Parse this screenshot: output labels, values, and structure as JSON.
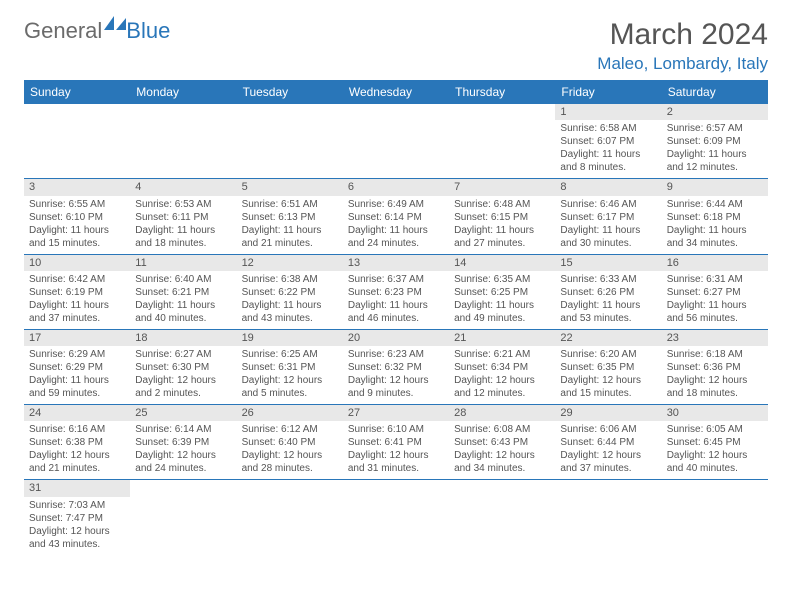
{
  "logo": {
    "part1": "General",
    "part2": "Blue"
  },
  "title": "March 2024",
  "subtitle": "Maleo, Lombardy, Italy",
  "colors": {
    "header_bg": "#2976b9",
    "header_text": "#ffffff",
    "daynum_bg": "#e8e8e8",
    "text": "#555555",
    "row_divider": "#2976b9",
    "page_bg": "#ffffff"
  },
  "typography": {
    "title_fontsize": 30,
    "subtitle_fontsize": 17,
    "dayhead_fontsize": 12,
    "cell_fontsize": 10
  },
  "day_headers": [
    "Sunday",
    "Monday",
    "Tuesday",
    "Wednesday",
    "Thursday",
    "Friday",
    "Saturday"
  ],
  "weeks": [
    [
      null,
      null,
      null,
      null,
      null,
      {
        "n": "1",
        "sr": "Sunrise: 6:58 AM",
        "ss": "Sunset: 6:07 PM",
        "d1": "Daylight: 11 hours",
        "d2": "and 8 minutes."
      },
      {
        "n": "2",
        "sr": "Sunrise: 6:57 AM",
        "ss": "Sunset: 6:09 PM",
        "d1": "Daylight: 11 hours",
        "d2": "and 12 minutes."
      }
    ],
    [
      {
        "n": "3",
        "sr": "Sunrise: 6:55 AM",
        "ss": "Sunset: 6:10 PM",
        "d1": "Daylight: 11 hours",
        "d2": "and 15 minutes."
      },
      {
        "n": "4",
        "sr": "Sunrise: 6:53 AM",
        "ss": "Sunset: 6:11 PM",
        "d1": "Daylight: 11 hours",
        "d2": "and 18 minutes."
      },
      {
        "n": "5",
        "sr": "Sunrise: 6:51 AM",
        "ss": "Sunset: 6:13 PM",
        "d1": "Daylight: 11 hours",
        "d2": "and 21 minutes."
      },
      {
        "n": "6",
        "sr": "Sunrise: 6:49 AM",
        "ss": "Sunset: 6:14 PM",
        "d1": "Daylight: 11 hours",
        "d2": "and 24 minutes."
      },
      {
        "n": "7",
        "sr": "Sunrise: 6:48 AM",
        "ss": "Sunset: 6:15 PM",
        "d1": "Daylight: 11 hours",
        "d2": "and 27 minutes."
      },
      {
        "n": "8",
        "sr": "Sunrise: 6:46 AM",
        "ss": "Sunset: 6:17 PM",
        "d1": "Daylight: 11 hours",
        "d2": "and 30 minutes."
      },
      {
        "n": "9",
        "sr": "Sunrise: 6:44 AM",
        "ss": "Sunset: 6:18 PM",
        "d1": "Daylight: 11 hours",
        "d2": "and 34 minutes."
      }
    ],
    [
      {
        "n": "10",
        "sr": "Sunrise: 6:42 AM",
        "ss": "Sunset: 6:19 PM",
        "d1": "Daylight: 11 hours",
        "d2": "and 37 minutes."
      },
      {
        "n": "11",
        "sr": "Sunrise: 6:40 AM",
        "ss": "Sunset: 6:21 PM",
        "d1": "Daylight: 11 hours",
        "d2": "and 40 minutes."
      },
      {
        "n": "12",
        "sr": "Sunrise: 6:38 AM",
        "ss": "Sunset: 6:22 PM",
        "d1": "Daylight: 11 hours",
        "d2": "and 43 minutes."
      },
      {
        "n": "13",
        "sr": "Sunrise: 6:37 AM",
        "ss": "Sunset: 6:23 PM",
        "d1": "Daylight: 11 hours",
        "d2": "and 46 minutes."
      },
      {
        "n": "14",
        "sr": "Sunrise: 6:35 AM",
        "ss": "Sunset: 6:25 PM",
        "d1": "Daylight: 11 hours",
        "d2": "and 49 minutes."
      },
      {
        "n": "15",
        "sr": "Sunrise: 6:33 AM",
        "ss": "Sunset: 6:26 PM",
        "d1": "Daylight: 11 hours",
        "d2": "and 53 minutes."
      },
      {
        "n": "16",
        "sr": "Sunrise: 6:31 AM",
        "ss": "Sunset: 6:27 PM",
        "d1": "Daylight: 11 hours",
        "d2": "and 56 minutes."
      }
    ],
    [
      {
        "n": "17",
        "sr": "Sunrise: 6:29 AM",
        "ss": "Sunset: 6:29 PM",
        "d1": "Daylight: 11 hours",
        "d2": "and 59 minutes."
      },
      {
        "n": "18",
        "sr": "Sunrise: 6:27 AM",
        "ss": "Sunset: 6:30 PM",
        "d1": "Daylight: 12 hours",
        "d2": "and 2 minutes."
      },
      {
        "n": "19",
        "sr": "Sunrise: 6:25 AM",
        "ss": "Sunset: 6:31 PM",
        "d1": "Daylight: 12 hours",
        "d2": "and 5 minutes."
      },
      {
        "n": "20",
        "sr": "Sunrise: 6:23 AM",
        "ss": "Sunset: 6:32 PM",
        "d1": "Daylight: 12 hours",
        "d2": "and 9 minutes."
      },
      {
        "n": "21",
        "sr": "Sunrise: 6:21 AM",
        "ss": "Sunset: 6:34 PM",
        "d1": "Daylight: 12 hours",
        "d2": "and 12 minutes."
      },
      {
        "n": "22",
        "sr": "Sunrise: 6:20 AM",
        "ss": "Sunset: 6:35 PM",
        "d1": "Daylight: 12 hours",
        "d2": "and 15 minutes."
      },
      {
        "n": "23",
        "sr": "Sunrise: 6:18 AM",
        "ss": "Sunset: 6:36 PM",
        "d1": "Daylight: 12 hours",
        "d2": "and 18 minutes."
      }
    ],
    [
      {
        "n": "24",
        "sr": "Sunrise: 6:16 AM",
        "ss": "Sunset: 6:38 PM",
        "d1": "Daylight: 12 hours",
        "d2": "and 21 minutes."
      },
      {
        "n": "25",
        "sr": "Sunrise: 6:14 AM",
        "ss": "Sunset: 6:39 PM",
        "d1": "Daylight: 12 hours",
        "d2": "and 24 minutes."
      },
      {
        "n": "26",
        "sr": "Sunrise: 6:12 AM",
        "ss": "Sunset: 6:40 PM",
        "d1": "Daylight: 12 hours",
        "d2": "and 28 minutes."
      },
      {
        "n": "27",
        "sr": "Sunrise: 6:10 AM",
        "ss": "Sunset: 6:41 PM",
        "d1": "Daylight: 12 hours",
        "d2": "and 31 minutes."
      },
      {
        "n": "28",
        "sr": "Sunrise: 6:08 AM",
        "ss": "Sunset: 6:43 PM",
        "d1": "Daylight: 12 hours",
        "d2": "and 34 minutes."
      },
      {
        "n": "29",
        "sr": "Sunrise: 6:06 AM",
        "ss": "Sunset: 6:44 PM",
        "d1": "Daylight: 12 hours",
        "d2": "and 37 minutes."
      },
      {
        "n": "30",
        "sr": "Sunrise: 6:05 AM",
        "ss": "Sunset: 6:45 PM",
        "d1": "Daylight: 12 hours",
        "d2": "and 40 minutes."
      }
    ],
    [
      {
        "n": "31",
        "sr": "Sunrise: 7:03 AM",
        "ss": "Sunset: 7:47 PM",
        "d1": "Daylight: 12 hours",
        "d2": "and 43 minutes."
      },
      null,
      null,
      null,
      null,
      null,
      null
    ]
  ]
}
